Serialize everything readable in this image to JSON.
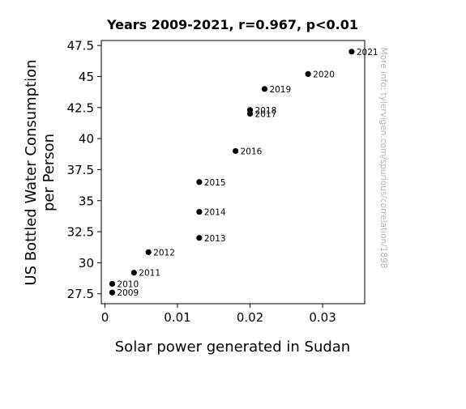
{
  "chart_data": {
    "type": "scatter",
    "title": "Years 2009-2021, r=0.967, p<0.01",
    "xlabel": "Solar power generated in Sudan",
    "ylabel_lines": [
      "US Bottled Water Consumption",
      "per Person"
    ],
    "xlim": [
      -0.0005,
      0.0358
    ],
    "ylim": [
      26.7,
      47.9
    ],
    "x_ticks": [
      {
        "value": 0,
        "label": "0"
      },
      {
        "value": 0.01,
        "label": "0.01"
      },
      {
        "value": 0.02,
        "label": "0.02"
      },
      {
        "value": 0.03,
        "label": "0.03"
      }
    ],
    "y_ticks": [
      {
        "value": 27.5,
        "label": "27.5"
      },
      {
        "value": 30,
        "label": "30"
      },
      {
        "value": 32.5,
        "label": "32.5"
      },
      {
        "value": 35,
        "label": "35"
      },
      {
        "value": 37.5,
        "label": "37.5"
      },
      {
        "value": 40,
        "label": "40"
      },
      {
        "value": 42.5,
        "label": "42.5"
      },
      {
        "value": 45,
        "label": "45"
      },
      {
        "value": 47.5,
        "label": "47.5"
      }
    ],
    "grid": false,
    "points": [
      {
        "label": "2009",
        "x": 0.001,
        "y": 27.6
      },
      {
        "label": "2010",
        "x": 0.001,
        "y": 28.3
      },
      {
        "label": "2011",
        "x": 0.004,
        "y": 29.2
      },
      {
        "label": "2012",
        "x": 0.006,
        "y": 30.85
      },
      {
        "label": "2013",
        "x": 0.013,
        "y": 32.0
      },
      {
        "label": "2014",
        "x": 0.013,
        "y": 34.1
      },
      {
        "label": "2015",
        "x": 0.013,
        "y": 36.5
      },
      {
        "label": "2016",
        "x": 0.018,
        "y": 39.0
      },
      {
        "label": "2017",
        "x": 0.02,
        "y": 42.0
      },
      {
        "label": "2018",
        "x": 0.02,
        "y": 42.3
      },
      {
        "label": "2019",
        "x": 0.022,
        "y": 44.0
      },
      {
        "label": "2020",
        "x": 0.028,
        "y": 45.2
      },
      {
        "label": "2021",
        "x": 0.034,
        "y": 47.0
      }
    ],
    "point_color": "#000000",
    "watermark": "More info: tylervigen.com/spurious/correlation/1898",
    "watermark_color": "#b3b3b3"
  }
}
